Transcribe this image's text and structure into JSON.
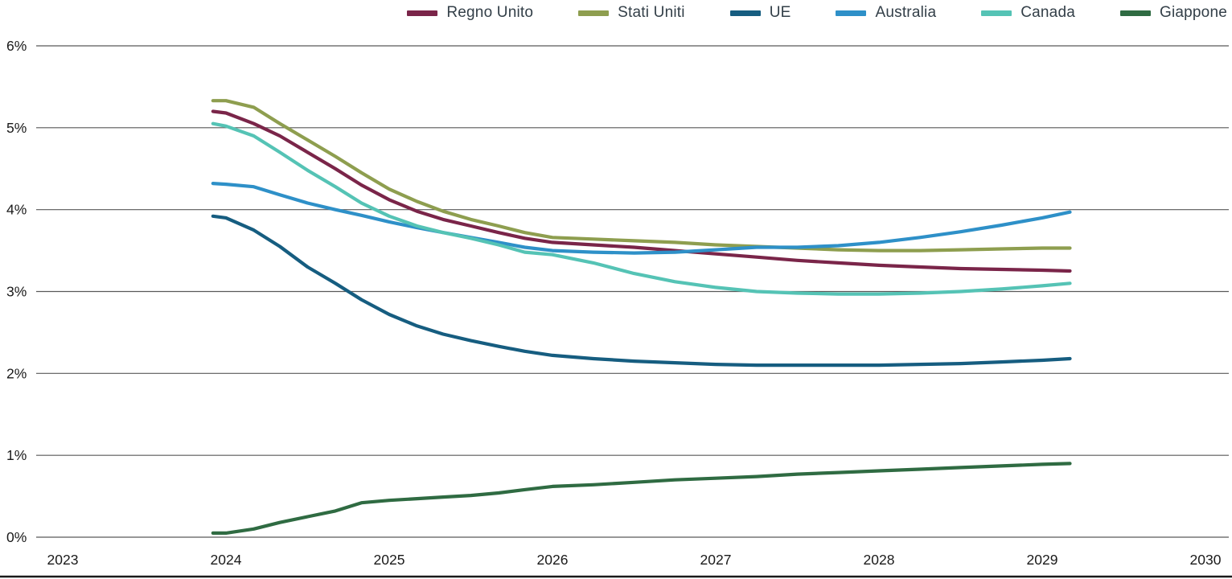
{
  "chart_data": {
    "type": "line",
    "title": "",
    "xlabel": "",
    "ylabel": "",
    "ylim": [
      0,
      6
    ],
    "ytick_labels": [
      "0%",
      "1%",
      "2%",
      "3%",
      "4%",
      "5%",
      "6%"
    ],
    "xlim": [
      2023,
      2030
    ],
    "xticks": [
      2023,
      2024,
      2025,
      2026,
      2027,
      2028,
      2029,
      2030
    ],
    "grid": "horizontal",
    "legend_position": "top-right",
    "x": [
      2023.92,
      2024,
      2024.17,
      2024.33,
      2024.5,
      2024.67,
      2024.83,
      2025,
      2025.17,
      2025.33,
      2025.5,
      2025.67,
      2025.83,
      2026,
      2026.25,
      2026.5,
      2026.75,
      2027,
      2027.25,
      2027.5,
      2027.75,
      2028,
      2028.25,
      2028.5,
      2028.75,
      2029,
      2029.17
    ],
    "series": [
      {
        "name": "Regno Unito",
        "color": "#7A2549",
        "values": [
          5.2,
          5.18,
          5.05,
          4.9,
          4.7,
          4.5,
          4.3,
          4.12,
          3.98,
          3.88,
          3.8,
          3.72,
          3.65,
          3.6,
          3.57,
          3.54,
          3.5,
          3.46,
          3.42,
          3.38,
          3.35,
          3.32,
          3.3,
          3.28,
          3.27,
          3.26,
          3.25
        ]
      },
      {
        "name": "Stati Uniti",
        "color": "#8E9E4F",
        "values": [
          5.33,
          5.33,
          5.25,
          5.05,
          4.85,
          4.65,
          4.45,
          4.25,
          4.1,
          3.98,
          3.88,
          3.8,
          3.72,
          3.66,
          3.64,
          3.62,
          3.6,
          3.57,
          3.55,
          3.53,
          3.51,
          3.5,
          3.5,
          3.51,
          3.52,
          3.53,
          3.53
        ]
      },
      {
        "name": "UE",
        "color": "#165D80",
        "values": [
          3.92,
          3.9,
          3.75,
          3.55,
          3.3,
          3.1,
          2.9,
          2.72,
          2.58,
          2.48,
          2.4,
          2.33,
          2.27,
          2.22,
          2.18,
          2.15,
          2.13,
          2.11,
          2.1,
          2.1,
          2.1,
          2.1,
          2.11,
          2.12,
          2.14,
          2.16,
          2.18
        ]
      },
      {
        "name": "Australia",
        "color": "#2E90C8",
        "values": [
          4.32,
          4.31,
          4.28,
          4.18,
          4.08,
          4.0,
          3.93,
          3.85,
          3.78,
          3.72,
          3.66,
          3.6,
          3.54,
          3.5,
          3.48,
          3.47,
          3.48,
          3.51,
          3.54,
          3.54,
          3.56,
          3.6,
          3.66,
          3.73,
          3.81,
          3.9,
          3.97
        ]
      },
      {
        "name": "Canada",
        "color": "#55C3B5",
        "values": [
          5.05,
          5.02,
          4.9,
          4.7,
          4.48,
          4.28,
          4.08,
          3.92,
          3.8,
          3.72,
          3.65,
          3.57,
          3.48,
          3.45,
          3.35,
          3.22,
          3.12,
          3.05,
          3.0,
          2.98,
          2.97,
          2.97,
          2.98,
          3.0,
          3.03,
          3.07,
          3.1
        ]
      },
      {
        "name": "Giappone",
        "color": "#2F6B42",
        "values": [
          0.05,
          0.05,
          0.1,
          0.18,
          0.25,
          0.32,
          0.42,
          0.45,
          0.47,
          0.49,
          0.51,
          0.54,
          0.58,
          0.62,
          0.64,
          0.67,
          0.7,
          0.72,
          0.74,
          0.77,
          0.79,
          0.81,
          0.83,
          0.85,
          0.87,
          0.89,
          0.9
        ]
      }
    ],
    "style": {
      "grid_color": "#595959",
      "axis_text_color": "#1a1a1a",
      "baseline_color": "#1a1a1a"
    }
  }
}
